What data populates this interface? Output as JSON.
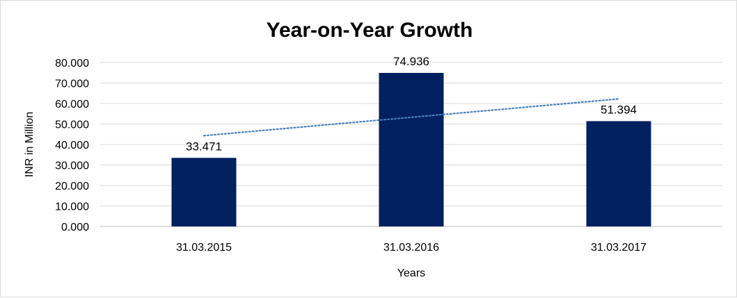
{
  "chart_data": {
    "type": "bar",
    "title": "Year-on-Year Growth",
    "xlabel": "Years",
    "ylabel": "INR in Million",
    "categories": [
      "31.03.2015",
      "31.03.2016",
      "31.03.2017"
    ],
    "values": [
      33.471,
      74.936,
      51.394
    ],
    "data_labels": [
      "33.471",
      "74.936",
      "51.394"
    ],
    "ylim": [
      0,
      80
    ],
    "yticks": [
      "0.000",
      "10.000",
      "20.000",
      "30.000",
      "40.000",
      "50.000",
      "60.000",
      "70.000",
      "80.000"
    ],
    "trendline": {
      "type": "linear",
      "style": "dotted",
      "color": "#4a7ebb"
    },
    "bar_color": "#002060",
    "grid": true,
    "legend": "none"
  }
}
